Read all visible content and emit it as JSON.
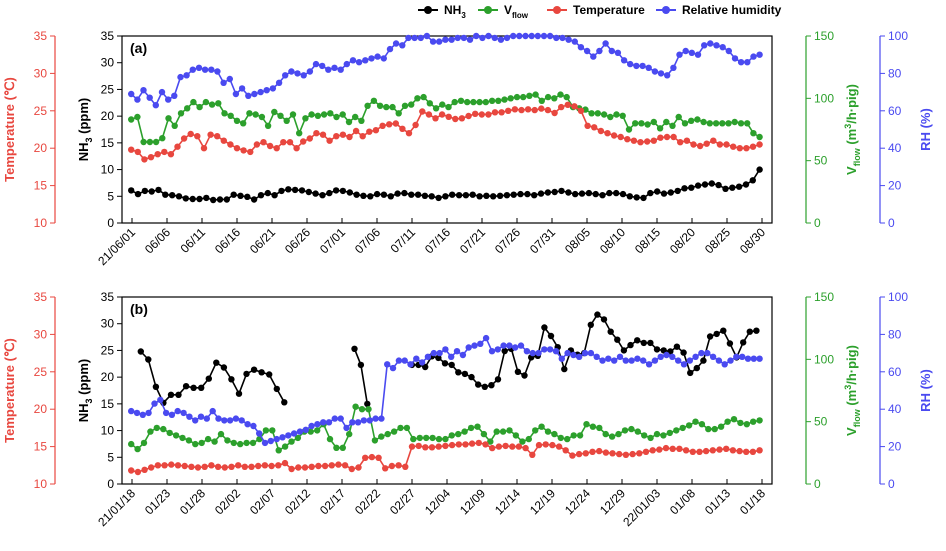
{
  "colors": {
    "nh3": "#000000",
    "vflow": "#2ca02c",
    "temperature": "#e8473f",
    "rh": "#4a4af0"
  },
  "chart_data": [
    {
      "type": "line",
      "panel_label": "(a)",
      "x_tick_labels": [
        "21/06/01",
        "06/06",
        "06/11",
        "06/16",
        "06/21",
        "06/26",
        "07/01",
        "07/06",
        "07/11",
        "07/16",
        "07/21",
        "07/26",
        "07/31",
        "08/05",
        "08/10",
        "08/15",
        "08/20",
        "08/25",
        "08/30"
      ],
      "axes": {
        "temperature": {
          "label": "Temperature (℃)",
          "range": [
            10,
            35
          ],
          "ticks": [
            "10",
            "15",
            "20",
            "25",
            "30",
            "35"
          ]
        },
        "nh3": {
          "label": "NH3 (ppm)",
          "range": [
            0,
            35
          ],
          "ticks": [
            "0",
            "5",
            "10",
            "15",
            "20",
            "25",
            "30",
            "35"
          ]
        },
        "vflow": {
          "label": "Vflow (m3/h·pig)",
          "range": [
            0,
            150
          ],
          "ticks": [
            "0",
            "50",
            "100",
            "150"
          ]
        },
        "rh": {
          "label": "RH (%)",
          "range": [
            0,
            100
          ],
          "ticks": [
            "0",
            "20",
            "40",
            "60",
            "80",
            "100"
          ]
        }
      },
      "legend": [
        "NH3",
        "Vflow",
        "Temperature",
        "Relative humidity"
      ],
      "series": [
        {
          "name": "NH3",
          "axis": "nh3",
          "segments": [
            [
              6.1,
              5.4,
              6.0,
              5.9,
              6.2,
              5.3,
              5.2,
              5.0,
              4.6,
              4.5,
              4.5,
              4.7,
              4.3,
              4.4,
              4.4,
              5.3,
              5.1,
              4.9,
              4.4,
              5.2,
              5.6,
              5.2,
              6.0,
              6.3,
              6.2,
              6.1,
              5.8,
              5.5,
              5.2,
              5.6,
              6.1,
              6.0,
              5.7,
              5.3,
              5.1,
              5.0,
              5.4,
              5.3,
              5.0,
              5.5,
              5.6,
              5.3,
              5.3,
              5.1,
              5.0,
              4.7,
              5.0,
              5.3,
              5.2,
              5.2,
              5.3,
              5.0,
              5.1,
              5.0,
              5.1,
              5.2,
              5.3,
              5.4,
              5.4,
              5.2,
              5.5,
              5.7,
              5.8,
              6.0,
              5.7,
              5.4,
              5.5,
              5.6,
              5.4,
              5.2,
              5.6,
              5.6,
              5.4,
              5.0,
              4.8,
              4.7,
              5.6,
              5.9,
              5.5,
              5.7,
              6.0,
              6.5,
              6.6,
              7.0,
              7.2,
              7.4,
              7.1,
              6.4,
              6.6,
              6.8,
              7.2,
              8.0,
              10.0
            ]
          ]
        },
        {
          "name": "Vflow",
          "axis": "vflow",
          "segments": [
            [
              83,
              85,
              65,
              65,
              65,
              68,
              84,
              78,
              88,
              92,
              97,
              93,
              97,
              95,
              96,
              88,
              86,
              82,
              80,
              88,
              87,
              85,
              78,
              89,
              86,
              82,
              87,
              72,
              84,
              87,
              86,
              87,
              88,
              85,
              87,
              81,
              85,
              82,
              94,
              98,
              94,
              93,
              93,
              88,
              94,
              95,
              100,
              101,
              96,
              92,
              95,
              93,
              97,
              98,
              97,
              97,
              97,
              97,
              98,
              98,
              99,
              100,
              101,
              101,
              102,
              103,
              98,
              101,
              100,
              103,
              101,
              93,
              92,
              91,
              88,
              88,
              87,
              85,
              87,
              86,
              75,
              80,
              80,
              79,
              81,
              76,
              81,
              78,
              85,
              80,
              82,
              83,
              81,
              80,
              80,
              80,
              80,
              81,
              80,
              80,
              72,
              69
            ]
          ]
        },
        {
          "name": "Temperature",
          "axis": "temperature",
          "segments": [
            [
              19.8,
              19.5,
              18.5,
              18.8,
              19.2,
              19.5,
              19.2,
              20.2,
              21.3,
              21.9,
              21.6,
              20.0,
              21.8,
              21.6,
              21.0,
              20.5,
              20.0,
              19.7,
              19.5,
              20.5,
              20.8,
              20.3,
              20.0,
              20.8,
              20.8,
              20.0,
              20.9,
              21.3,
              22.0,
              21.8,
              21.0,
              21.6,
              21.8,
              21.5,
              22.3,
              21.6,
              22.2,
              22.4,
              23.0,
              23.2,
              23.3,
              22.6,
              22.0,
              23.1,
              24.9,
              24.5,
              24.0,
              24.5,
              24.2,
              23.9,
              24.0,
              24.3,
              24.6,
              24.5,
              24.5,
              24.8,
              24.8,
              25.0,
              25.2,
              25.1,
              25.2,
              25.1,
              25.3,
              25.1,
              24.7,
              25.5,
              25.8,
              25.6,
              25.0,
              23.0,
              22.8,
              22.3,
              22.0,
              21.7,
              21.5,
              21.2,
              21.0,
              20.8,
              20.9,
              21.0,
              21.4,
              21.5,
              21.5,
              20.8,
              21.0,
              20.5,
              20.3,
              20.6,
              21.0,
              20.5,
              20.5,
              20.2,
              20.0,
              20.0,
              20.2,
              20.5
            ]
          ]
        },
        {
          "name": "Relative humidity",
          "axis": "rh",
          "segments": [
            [
              69,
              66,
              71,
              67,
              63,
              70,
              66,
              68,
              78,
              79,
              82,
              83,
              82,
              82,
              81,
              75,
              77,
              69,
              72,
              68,
              69,
              70,
              71,
              72,
              75,
              79,
              81,
              80,
              79,
              81,
              85,
              84,
              82,
              83,
              82,
              85,
              87,
              86,
              87,
              88,
              89,
              88,
              93,
              96,
              95,
              99,
              99,
              99,
              100,
              97,
              97,
              98,
              98,
              99,
              99,
              98,
              100,
              99,
              100,
              99,
              98,
              99,
              100,
              100,
              100,
              100,
              100,
              100,
              100,
              99,
              99,
              98,
              97,
              94,
              92,
              89,
              92,
              96,
              92,
              91,
              87,
              85,
              84,
              84,
              83,
              81,
              80,
              79,
              83,
              90,
              92,
              91,
              90,
              95,
              96,
              95,
              94,
              92,
              88,
              86,
              86,
              89,
              90
            ]
          ]
        }
      ]
    },
    {
      "type": "line",
      "panel_label": "(b)",
      "x_tick_labels": [
        "21/01/18",
        "01/23",
        "01/28",
        "02/02",
        "02/07",
        "02/12",
        "02/17",
        "02/22",
        "02/27",
        "12/04",
        "12/09",
        "12/14",
        "12/19",
        "12/24",
        "12/29",
        "22/01/03",
        "01/08",
        "01/13",
        "01/18"
      ],
      "axes": {
        "temperature": {
          "label": "Temperature (℃)",
          "range": [
            10,
            35
          ],
          "ticks": [
            "10",
            "15",
            "20",
            "25",
            "30",
            "35"
          ]
        },
        "nh3": {
          "label": "NH3 (ppm)",
          "range": [
            0,
            35
          ],
          "ticks": [
            "0",
            "5",
            "10",
            "15",
            "20",
            "25",
            "30",
            "35"
          ]
        },
        "vflow": {
          "label": "Vflow (m3/h·pig)",
          "range": [
            0,
            150
          ],
          "ticks": [
            "0",
            "50",
            "100",
            "150"
          ]
        },
        "rh": {
          "label": "RH (%)",
          "range": [
            0,
            100
          ],
          "ticks": [
            "0",
            "20",
            "40",
            "60",
            "80",
            "100"
          ]
        }
      },
      "series": [
        {
          "name": "NH3",
          "axis": "nh3",
          "segments": [
            [
              24.8,
              23.3,
              18.2,
              15.2,
              16.7,
              16.7,
              18.3,
              18.0,
              18.0,
              19.7,
              22.7,
              21.8,
              19.6,
              16.9,
              20.6,
              21.4,
              20.9,
              20.5,
              17.8,
              15.3
            ],
            [
              25.3,
              22.3,
              15.0
            ],
            [
              22.3,
              22.3,
              21.9,
              23.9,
              23.6,
              22.6,
              22.3,
              20.9,
              20.6,
              20.0,
              18.6,
              18.2,
              18.5,
              19.6,
              24.9,
              25.3,
              21.0,
              20.3,
              23.7,
              24.0,
              29.3,
              27.7,
              25.6,
              21.5,
              25.0,
              24.2,
              24.5,
              29.8,
              31.7,
              30.8,
              28.5,
              27.0,
              25.0,
              26.0,
              26.9,
              26.4,
              26.4,
              25.2,
              25.0,
              24.8,
              25.7,
              24.6,
              20.8,
              21.7,
              23.1,
              27.6,
              28.1,
              28.7,
              26.3,
              23.7,
              26.5,
              28.5,
              28.7
            ]
          ]
        },
        {
          "name": "Vflow",
          "axis": "vflow",
          "segments": [
            [
              32,
              28,
              33,
              42,
              45,
              44,
              41,
              39,
              37,
              35,
              32,
              33,
              36,
              34,
              40,
              35,
              33,
              32,
              33,
              33,
              36,
              43,
              43,
              27,
              30,
              34,
              37,
              42,
              42,
              43,
              48,
              36,
              29,
              29,
              40,
              62,
              60,
              60,
              35,
              38,
              40,
              42,
              45,
              45,
              36,
              37,
              37,
              37,
              36,
              36,
              39,
              40,
              42,
              45,
              46,
              40,
              34,
              42,
              42,
              43,
              39,
              34,
              36,
              43,
              46,
              42,
              40,
              37,
              36,
              39,
              39,
              48,
              46,
              45,
              40,
              38,
              40,
              43,
              44,
              42,
              39,
              37,
              40,
              39,
              41,
              43,
              45,
              47,
              50,
              48,
              44,
              44,
              46,
              50,
              52,
              49,
              48,
              50,
              51
            ]
          ]
        },
        {
          "name": "Temperature",
          "axis": "temperature",
          "segments": [
            [
              11.8,
              11.6,
              11.9,
              12.2,
              12.5,
              12.5,
              12.6,
              12.5,
              12.4,
              12.3,
              12.2,
              12.3,
              12.5,
              12.3,
              12.2,
              12.3,
              12.5,
              12.3,
              12.3,
              12.4,
              12.5,
              12.4,
              12.5,
              12.8,
              12.0,
              12.2,
              12.2,
              12.3,
              12.4,
              12.4,
              12.5,
              12.6,
              12.5,
              12.0,
              12.2,
              13.5,
              13.6,
              13.5,
              12.1,
              12.4,
              12.5,
              12.3,
              15.0,
              15.1,
              14.9,
              14.9,
              15.0,
              15.1,
              15.2,
              15.3,
              15.3,
              15.4,
              15.5,
              15.3,
              14.8,
              15.0,
              15.1,
              15.0,
              15.0,
              14.8,
              13.9,
              15.2,
              15.3,
              15.2,
              15.0,
              14.5,
              13.8,
              14.0,
              14.1,
              14.3,
              14.4,
              14.2,
              14.1,
              14.0,
              13.9,
              14.0,
              14.1,
              14.3,
              14.5,
              14.6,
              14.8,
              14.7,
              14.7,
              14.5,
              14.3,
              14.3,
              14.4,
              14.5,
              14.6,
              14.7,
              14.5,
              14.4,
              14.3,
              14.3,
              14.5
            ]
          ]
        },
        {
          "name": "Relative humidity",
          "axis": "rh",
          "segments": [
            [
              39,
              38,
              37,
              38,
              43,
              45,
              38,
              37,
              39,
              38,
              36,
              34,
              36,
              35,
              39,
              35,
              34,
              34,
              35,
              34,
              32,
              31,
              27,
              22,
              23,
              24,
              25,
              26,
              27,
              28,
              29,
              31,
              32,
              33,
              33,
              35,
              35,
              30,
              33,
              33,
              34,
              34,
              35,
              35,
              64,
              62,
              66,
              66,
              64,
              67,
              65,
              68,
              70,
              70,
              72,
              68,
              71,
              69,
              73,
              74,
              75,
              78,
              71,
              72,
              74,
              74,
              73,
              74,
              71,
              70,
              70,
              72,
              72,
              71,
              67,
              70,
              69,
              68,
              70,
              70,
              68,
              66,
              67,
              66,
              68,
              66,
              66,
              67,
              66,
              64,
              66,
              68,
              69,
              68,
              66,
              64,
              66,
              68,
              70,
              70,
              68,
              66,
              64,
              66,
              68,
              68,
              67,
              67,
              67
            ]
          ]
        }
      ]
    }
  ]
}
